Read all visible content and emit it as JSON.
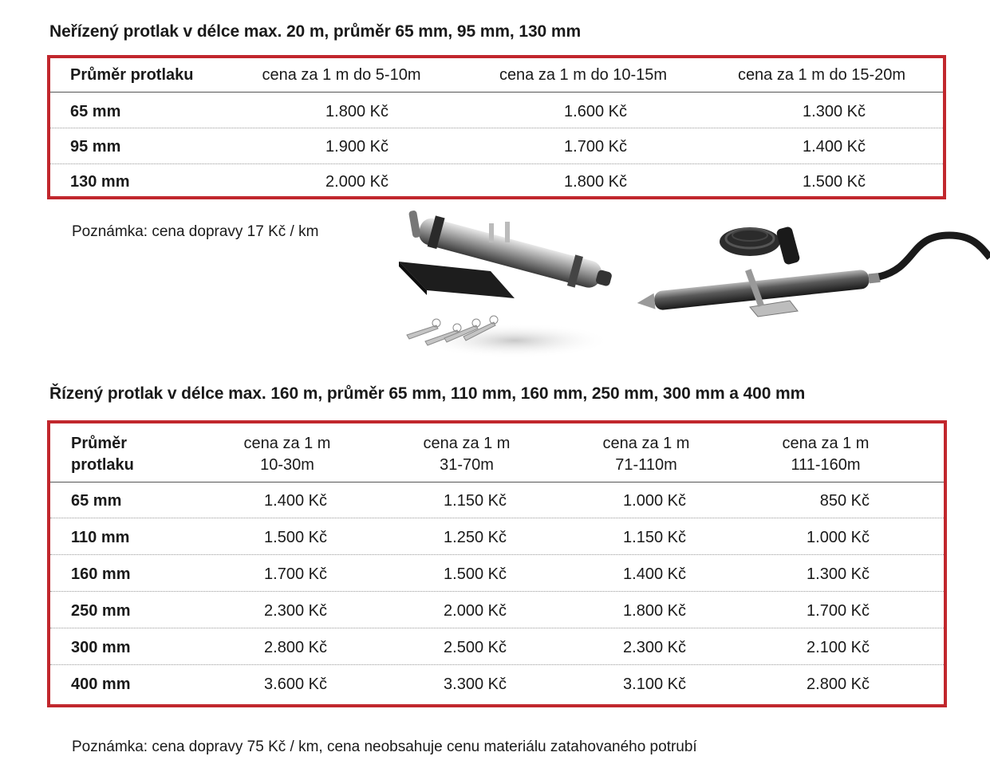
{
  "section1": {
    "heading": "Neřízený protlak v délce max. 20 m, průměr 65 mm, 95 mm, 130 mm",
    "headers": [
      "Průměr protlaku",
      "cena za 1 m do 5-10m",
      "cena za 1 m do 10-15m",
      "cena za 1 m do 15-20m"
    ],
    "rows": [
      [
        "65 mm",
        "1.800 Kč",
        "1.600 Kč",
        "1.300 Kč"
      ],
      [
        "95 mm",
        "1.900 Kč",
        "1.700 Kč",
        "1.400 Kč"
      ],
      [
        "130 mm",
        "2.000 Kč",
        "1.800 Kč",
        "1.500 Kč"
      ]
    ],
    "note": "Poznámka: cena dopravy 17 Kč / km"
  },
  "section2": {
    "heading": "Řízený protlak v délce max. 160 m, průměr 65 mm, 110 mm, 160 mm, 250 mm, 300 mm a 400 mm",
    "headers": [
      [
        "Průměr",
        "protlaku"
      ],
      [
        "cena za 1 m",
        "10-30m"
      ],
      [
        "cena za 1 m",
        "31-70m"
      ],
      [
        "cena za 1 m",
        "71-110m"
      ],
      [
        "cena za 1 m",
        "111-160m"
      ]
    ],
    "rows": [
      [
        "65 mm",
        "1.400 Kč",
        "1.150 Kč",
        "1.000 Kč",
        "850 Kč"
      ],
      [
        "110 mm",
        "1.500 Kč",
        "1.250 Kč",
        "1.150 Kč",
        "1.000 Kč"
      ],
      [
        "160 mm",
        "1.700 Kč",
        "1.500 Kč",
        "1.400 Kč",
        "1.300 Kč"
      ],
      [
        "250 mm",
        "2.300 Kč",
        "2.000 Kč",
        "1.800 Kč",
        "1.700 Kč"
      ],
      [
        "300 mm",
        "2.800 Kč",
        "2.500 Kč",
        "2.300 Kč",
        "2.100 Kč"
      ],
      [
        "400 mm",
        "3.600 Kč",
        "3.300 Kč",
        "3.100 Kč",
        "2.800 Kč"
      ]
    ],
    "note": "Poznámka: cena dopravy 75 Kč / km, cena neobsahuje cenu materiálu zatahovaného potrubí"
  },
  "colors": {
    "border": "#c1272d",
    "text": "#1a1a1a"
  }
}
